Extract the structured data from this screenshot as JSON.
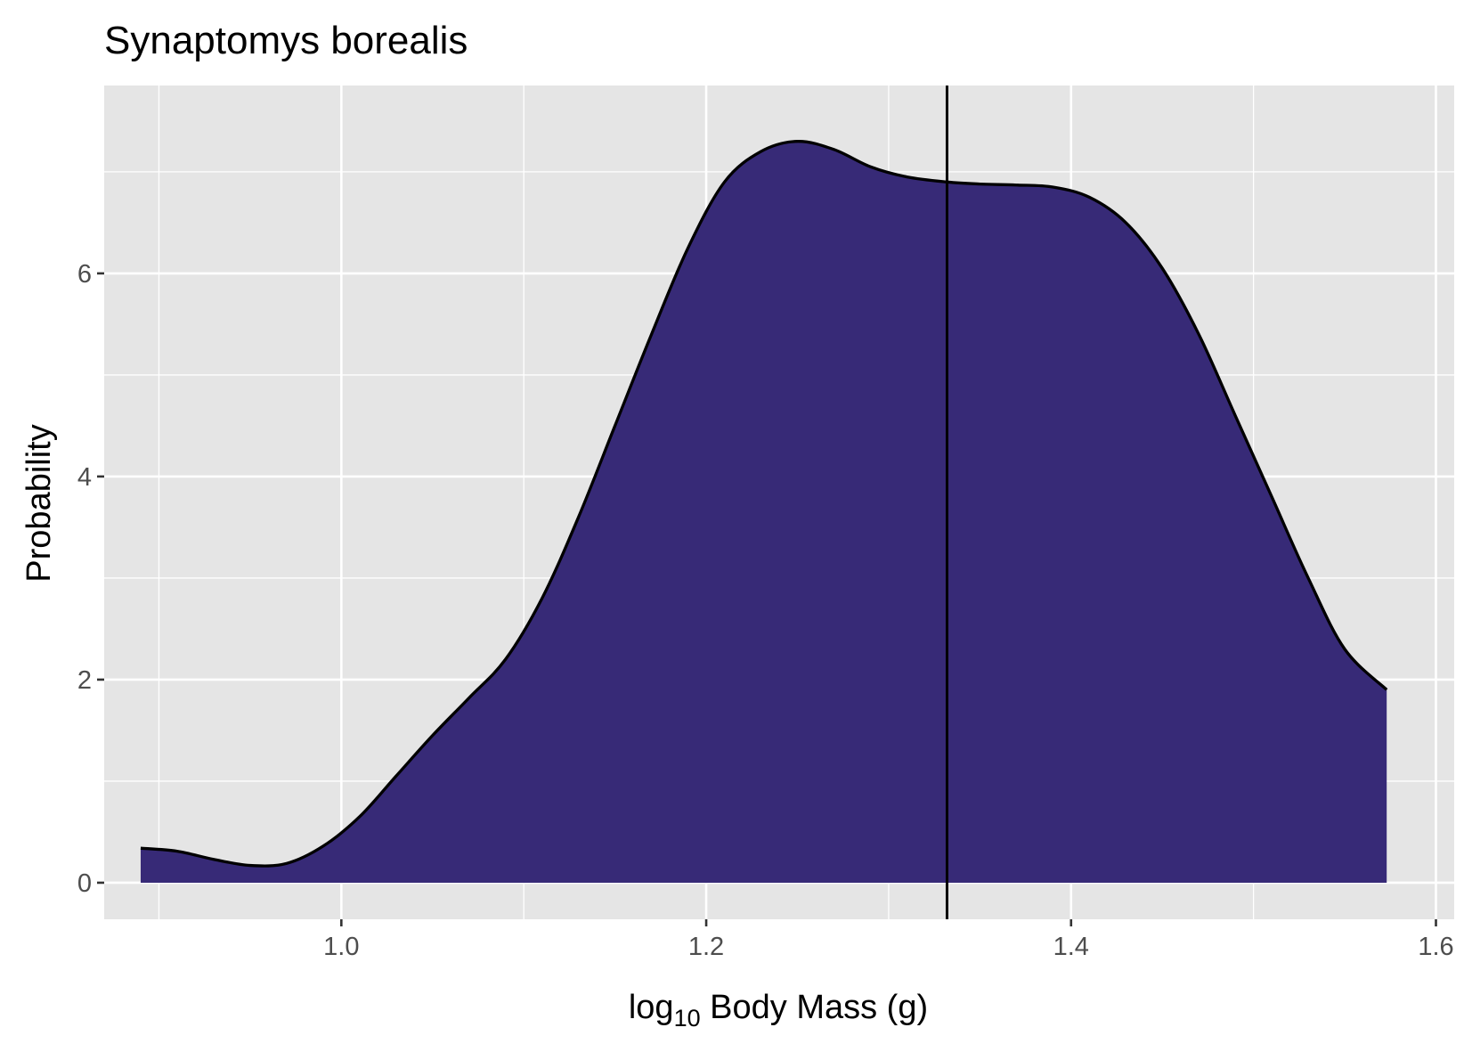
{
  "chart_data": {
    "type": "area",
    "title": "Synaptomys borealis",
    "xlabel_parts": {
      "pre": "log",
      "sub": "10",
      "post": " Body Mass (g)"
    },
    "ylabel": "Probability",
    "xlim": [
      0.87,
      1.61
    ],
    "ylim": [
      -0.36,
      7.85
    ],
    "x_ticks": [
      {
        "value": 1.0,
        "label": "1.0"
      },
      {
        "value": 1.2,
        "label": "1.2"
      },
      {
        "value": 1.4,
        "label": "1.4"
      },
      {
        "value": 1.6,
        "label": "1.6"
      }
    ],
    "x_minor": [
      0.9,
      1.1,
      1.3,
      1.5
    ],
    "y_ticks": [
      {
        "value": 0,
        "label": "0"
      },
      {
        "value": 2,
        "label": "2"
      },
      {
        "value": 4,
        "label": "4"
      },
      {
        "value": 6,
        "label": "6"
      }
    ],
    "y_minor": [
      1,
      3,
      5,
      7
    ],
    "grid": true,
    "vline_x": 1.332,
    "fill_color": "#372A77",
    "line_color": "#000000",
    "panel_bg": "#E5E5E5",
    "series": [
      {
        "x": [
          0.89,
          0.91,
          0.93,
          0.95,
          0.97,
          0.99,
          1.01,
          1.03,
          1.05,
          1.07,
          1.09,
          1.11,
          1.13,
          1.15,
          1.17,
          1.19,
          1.21,
          1.23,
          1.25,
          1.27,
          1.29,
          1.31,
          1.332,
          1.35,
          1.37,
          1.39,
          1.41,
          1.43,
          1.45,
          1.47,
          1.49,
          1.51,
          1.53,
          1.55,
          1.573
        ],
        "y": [
          0.34,
          0.31,
          0.23,
          0.17,
          0.19,
          0.36,
          0.65,
          1.05,
          1.45,
          1.82,
          2.2,
          2.8,
          3.6,
          4.5,
          5.4,
          6.25,
          6.9,
          7.2,
          7.3,
          7.22,
          7.05,
          6.95,
          6.9,
          6.88,
          6.87,
          6.85,
          6.75,
          6.5,
          6.05,
          5.4,
          4.6,
          3.8,
          3.0,
          2.3,
          1.9
        ]
      }
    ]
  }
}
